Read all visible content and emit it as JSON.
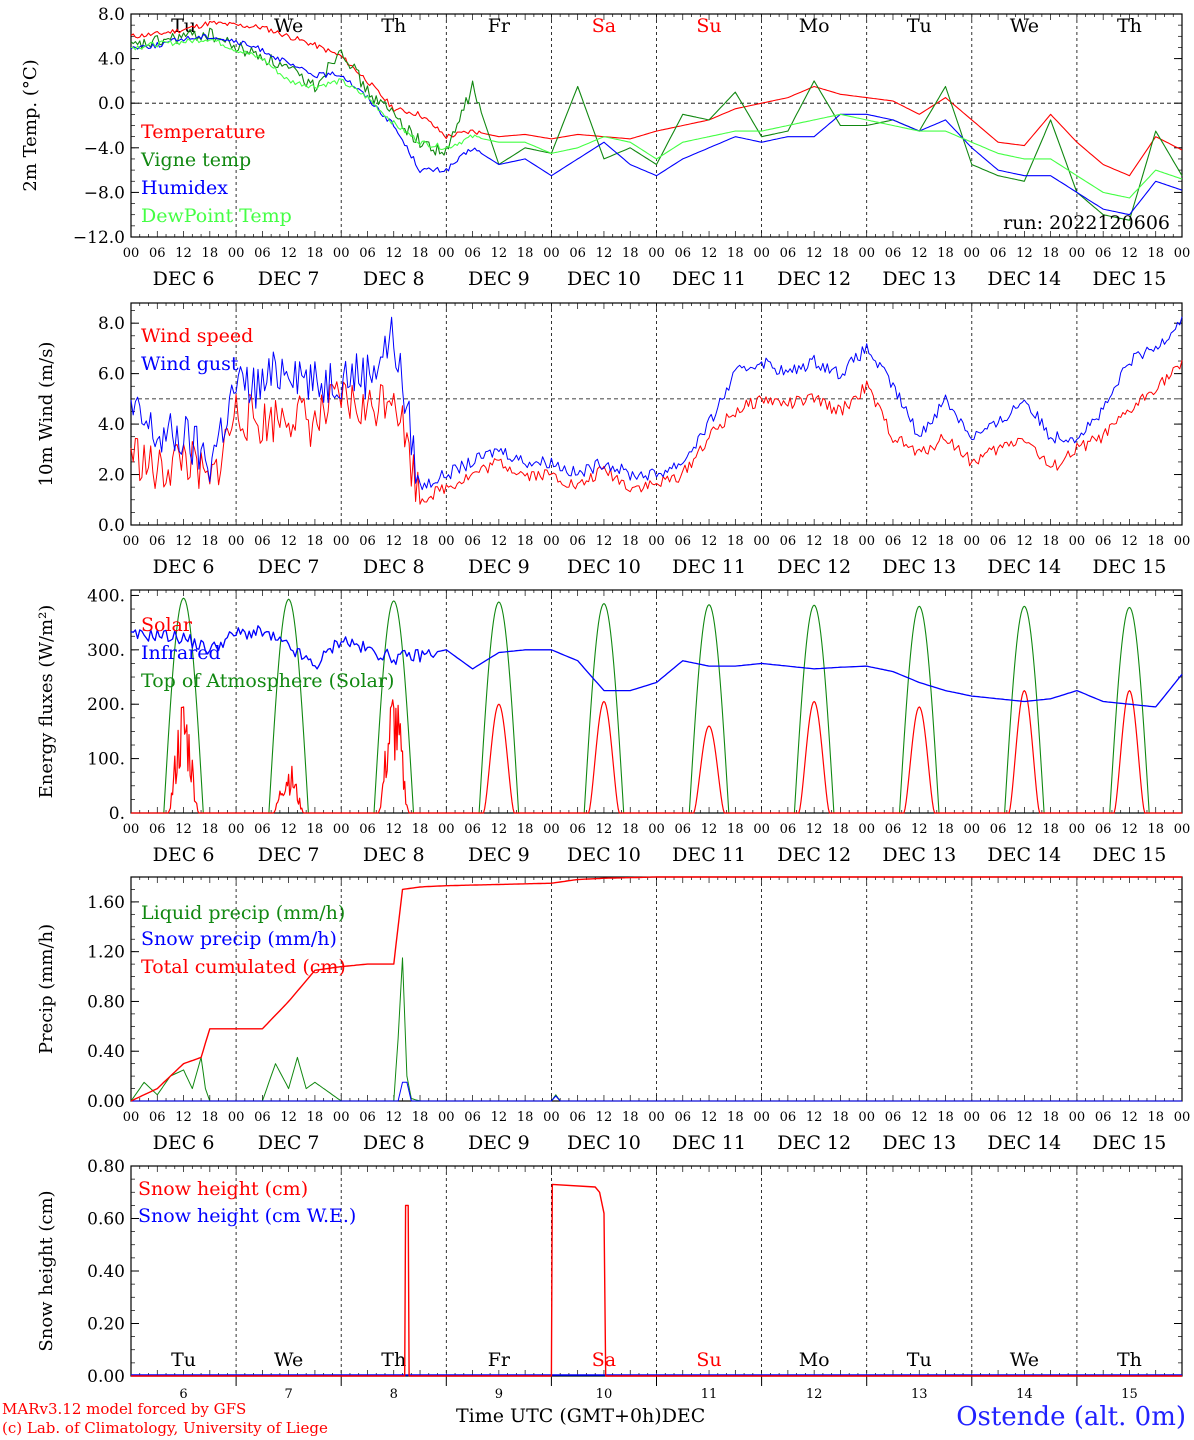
{
  "run": "run: 2022120606",
  "footer": {
    "credit_line1": "MARv3.12 model forced by GFS",
    "credit_line2": "(c) Lab. of Climatology, University of Liege",
    "xlabel": "Time UTC (GMT+0h)",
    "month": "DEC",
    "station": "Ostende (alt. 0m)"
  },
  "colors": {
    "red": "#ff0000",
    "green": "#118811",
    "blue": "#0000ff",
    "lightgreen": "#44ff44",
    "dark": "#000000"
  },
  "days": [
    {
      "dow": "Tu",
      "date": "DEC  6",
      "num": "6",
      "weekend": false
    },
    {
      "dow": "We",
      "date": "DEC  7",
      "num": "7",
      "weekend": false
    },
    {
      "dow": "Th",
      "date": "DEC  8",
      "num": "8",
      "weekend": false
    },
    {
      "dow": "Fr",
      "date": "DEC  9",
      "num": "9",
      "weekend": false
    },
    {
      "dow": "Sa",
      "date": "DEC 10",
      "num": "10",
      "weekend": true
    },
    {
      "dow": "Su",
      "date": "DEC 11",
      "num": "11",
      "weekend": true
    },
    {
      "dow": "Mo",
      "date": "DEC 12",
      "num": "12",
      "weekend": false
    },
    {
      "dow": "Tu",
      "date": "DEC 13",
      "num": "13",
      "weekend": false
    },
    {
      "dow": "We",
      "date": "DEC 14",
      "num": "14",
      "weekend": false
    },
    {
      "dow": "Th",
      "date": "DEC 15",
      "num": "15",
      "weekend": false
    }
  ],
  "hour_ticks": [
    "00",
    "06",
    "12",
    "18"
  ],
  "chart_data": [
    {
      "type": "line",
      "ylabel": "2m Temp. (°C)",
      "ylim": [
        -12,
        8
      ],
      "yticks": [
        "−12.0",
        "−8.0",
        "−4.0",
        "0.0",
        "4.0",
        "8.0"
      ],
      "ytick_values": [
        -12,
        -8,
        -4,
        0,
        4,
        8
      ],
      "hline": 0,
      "x_hours": [
        0,
        6,
        12,
        18,
        24,
        30,
        36,
        42,
        48,
        54,
        60,
        66,
        72,
        78,
        84,
        90,
        96,
        102,
        108,
        114,
        120,
        126,
        132,
        138,
        144,
        150,
        156,
        162,
        168,
        174,
        180,
        186,
        192,
        198,
        204,
        210,
        216,
        222,
        228,
        234,
        240
      ],
      "series": [
        {
          "name": "Temperature",
          "color": "red",
          "values": [
            6.0,
            6.2,
            6.6,
            7.2,
            7.0,
            6.8,
            6.0,
            5.2,
            4.2,
            2.0,
            -0.5,
            -1.0,
            -3.0,
            -2.5,
            -3.0,
            -2.8,
            -3.2,
            -2.8,
            -3.0,
            -3.2,
            -2.5,
            -2.0,
            -1.5,
            -0.5,
            0.0,
            0.5,
            1.5,
            0.8,
            0.5,
            0.2,
            -1.0,
            0.5,
            -1.5,
            -3.5,
            -3.8,
            -1.0,
            -3.5,
            -5.5,
            -6.5,
            -3.0,
            -4.2
          ]
        },
        {
          "name": "Vigne temp",
          "color": "green",
          "values": [
            5.0,
            5.5,
            6.0,
            6.2,
            5.0,
            4.2,
            3.0,
            1.5,
            5.0,
            1.0,
            -1.0,
            -3.5,
            -4.5,
            1.5,
            -5.5,
            -4.0,
            -4.5,
            1.5,
            -5.0,
            -4.0,
            -5.5,
            -1.0,
            -1.5,
            1.0,
            -3.0,
            -2.5,
            2.0,
            -2.0,
            -2.0,
            -1.5,
            -2.5,
            1.5,
            -5.5,
            -6.5,
            -7.0,
            -1.5,
            -8.0,
            -10.0,
            -10.5,
            -2.5,
            -6.5
          ]
        },
        {
          "name": "Humidex",
          "color": "blue",
          "values": [
            5.0,
            5.2,
            5.8,
            6.0,
            5.5,
            4.8,
            3.5,
            2.5,
            2.6,
            0.5,
            -2.0,
            -6.0,
            -6.0,
            -4.0,
            -5.5,
            -5.0,
            -6.5,
            -5.0,
            -3.5,
            -5.5,
            -6.5,
            -5.0,
            -4.0,
            -3.0,
            -3.5,
            -3.0,
            -3.0,
            -1.0,
            -1.0,
            -1.5,
            -2.5,
            -1.5,
            -4.0,
            -6.0,
            -6.5,
            -6.5,
            -8.0,
            -9.5,
            -10.0,
            -7.0,
            -7.8
          ]
        },
        {
          "name": "DewPoint Temp",
          "color": "lightgreen",
          "values": [
            5.0,
            5.3,
            5.5,
            5.8,
            4.8,
            4.0,
            2.0,
            1.5,
            2.0,
            0.5,
            -1.8,
            -3.5,
            -4.0,
            -3.0,
            -3.5,
            -3.5,
            -4.5,
            -4.0,
            -3.0,
            -3.5,
            -5.0,
            -3.5,
            -3.0,
            -2.5,
            -2.5,
            -2.0,
            -1.5,
            -1.0,
            -1.5,
            -2.0,
            -2.5,
            -2.5,
            -3.5,
            -4.5,
            -5.0,
            -5.0,
            -6.5,
            -8.0,
            -8.5,
            -6.0,
            -6.8
          ]
        }
      ]
    },
    {
      "type": "line",
      "ylabel": "10m Wind (m/s)",
      "ylim": [
        0,
        8.8
      ],
      "yticks": [
        "0.0",
        "2.0",
        "4.0",
        "6.0",
        "8.0"
      ],
      "ytick_values": [
        0,
        2,
        4,
        6,
        8
      ],
      "hline": 5,
      "x_hours": [
        0,
        6,
        12,
        18,
        24,
        30,
        36,
        42,
        48,
        54,
        60,
        66,
        72,
        78,
        84,
        90,
        96,
        102,
        108,
        114,
        120,
        126,
        132,
        138,
        144,
        150,
        156,
        162,
        168,
        174,
        180,
        186,
        192,
        198,
        204,
        210,
        216,
        222,
        228,
        234,
        240
      ],
      "series": [
        {
          "name": "Wind speed",
          "color": "red",
          "values": [
            3.0,
            2.0,
            2.8,
            1.5,
            4.5,
            4.0,
            4.5,
            4.0,
            5.0,
            4.5,
            5.5,
            1.0,
            1.5,
            2.0,
            2.5,
            2.0,
            2.0,
            1.5,
            2.2,
            1.5,
            1.6,
            2.0,
            3.5,
            4.5,
            5.0,
            4.8,
            5.0,
            4.5,
            5.5,
            3.5,
            2.8,
            3.5,
            2.5,
            3.0,
            3.5,
            2.2,
            3.0,
            3.5,
            4.5,
            5.5,
            6.3
          ]
        },
        {
          "name": "Wind gust",
          "color": "blue",
          "values": [
            4.5,
            3.5,
            3.5,
            2.5,
            5.5,
            5.5,
            6.5,
            5.5,
            6.0,
            6.0,
            7.5,
            1.5,
            2.0,
            2.5,
            3.0,
            2.5,
            2.5,
            2.0,
            2.5,
            2.0,
            2.0,
            2.5,
            4.0,
            6.0,
            6.5,
            6.0,
            6.5,
            6.0,
            7.0,
            5.5,
            3.5,
            5.0,
            3.5,
            4.0,
            5.0,
            3.5,
            3.5,
            4.5,
            6.5,
            7.0,
            8.2
          ]
        }
      ]
    },
    {
      "type": "line",
      "ylabel": "Energy fluxes (W/m²)",
      "ylim": [
        0,
        410
      ],
      "yticks": [
        "0.",
        "100.",
        "200.",
        "300.",
        "400."
      ],
      "ytick_values": [
        0,
        100,
        200,
        300,
        400
      ],
      "solar_peaks": [
        185,
        80,
        200,
        200,
        205,
        160,
        205,
        195,
        225,
        225
      ],
      "toa_peaks": [
        395,
        393,
        390,
        388,
        385,
        383,
        382,
        380,
        380,
        378
      ],
      "infrared": {
        "x_hours": [
          0,
          6,
          12,
          18,
          24,
          30,
          36,
          42,
          48,
          54,
          60,
          66,
          72,
          78,
          84,
          90,
          96,
          102,
          108,
          114,
          120,
          126,
          132,
          138,
          144,
          150,
          156,
          162,
          168,
          174,
          180,
          186,
          192,
          198,
          204,
          210,
          216,
          222,
          228,
          234,
          240
        ],
        "values": [
          325,
          328,
          322,
          300,
          330,
          332,
          305,
          270,
          320,
          300,
          285,
          290,
          300,
          265,
          295,
          300,
          300,
          280,
          225,
          225,
          240,
          280,
          270,
          270,
          275,
          270,
          265,
          268,
          270,
          260,
          240,
          225,
          215,
          210,
          205,
          210,
          225,
          205,
          200,
          195,
          255
        ]
      },
      "series": [
        {
          "name": "Solar",
          "color": "red"
        },
        {
          "name": "Infrared",
          "color": "blue"
        },
        {
          "name": "Top of Atmosphere (Solar)",
          "color": "green"
        }
      ]
    },
    {
      "type": "line",
      "ylabel": "Precip (mm/h)",
      "ylim": [
        0,
        1.8
      ],
      "yticks": [
        "0.00",
        "0.40",
        "0.80",
        "1.20",
        "1.60"
      ],
      "ytick_values": [
        0,
        0.4,
        0.8,
        1.2,
        1.6
      ],
      "cumulated": {
        "x_hours": [
          0,
          6,
          12,
          16,
          18,
          24,
          30,
          36,
          42,
          48,
          54,
          60,
          62,
          66,
          72,
          84,
          96,
          102,
          108,
          120,
          144,
          168,
          192,
          216,
          240
        ],
        "values": [
          0.0,
          0.1,
          0.3,
          0.35,
          0.58,
          0.58,
          0.58,
          0.8,
          1.05,
          1.08,
          1.1,
          1.1,
          1.7,
          1.72,
          1.73,
          1.74,
          1.75,
          1.78,
          1.79,
          1.8,
          1.8,
          1.8,
          1.8,
          1.8,
          1.8
        ]
      },
      "liquid": {
        "x_hours": [
          0,
          3,
          6,
          9,
          12,
          14,
          16,
          17,
          18,
          30,
          33,
          36,
          38,
          40,
          42,
          48,
          60,
          61,
          62,
          63,
          64,
          66,
          96,
          97,
          98
        ],
        "values": [
          0,
          0.15,
          0.05,
          0.2,
          0.25,
          0.1,
          0.35,
          0.1,
          0,
          0,
          0.3,
          0.1,
          0.35,
          0.1,
          0.15,
          0,
          0,
          0.5,
          1.15,
          0.2,
          0.02,
          0,
          0,
          0.05,
          0
        ]
      },
      "series": [
        {
          "name": "Liquid precip (mm/h)",
          "color": "green"
        },
        {
          "name": "Snow precip (mm/h)",
          "color": "blue"
        },
        {
          "name": "Total cumulated (cm)",
          "color": "red"
        }
      ]
    },
    {
      "type": "line",
      "ylabel": "Snow height (cm)",
      "ylim": [
        0,
        0.8
      ],
      "yticks": [
        "0.00",
        "0.20",
        "0.40",
        "0.60",
        "0.80"
      ],
      "ytick_values": [
        0,
        0.2,
        0.4,
        0.6,
        0.8
      ],
      "snow": {
        "x_hours": [
          0,
          62.5,
          62.7,
          63.3,
          63.5,
          96,
          96.2,
          106,
          107,
          108,
          108.4,
          240
        ],
        "values": [
          0,
          0,
          0.65,
          0.65,
          0,
          0,
          0.73,
          0.72,
          0.7,
          0.62,
          0,
          0
        ]
      },
      "series": [
        {
          "name": "Snow height (cm)",
          "color": "red"
        },
        {
          "name": "Snow height (cm W.E.)",
          "color": "blue"
        }
      ]
    }
  ]
}
